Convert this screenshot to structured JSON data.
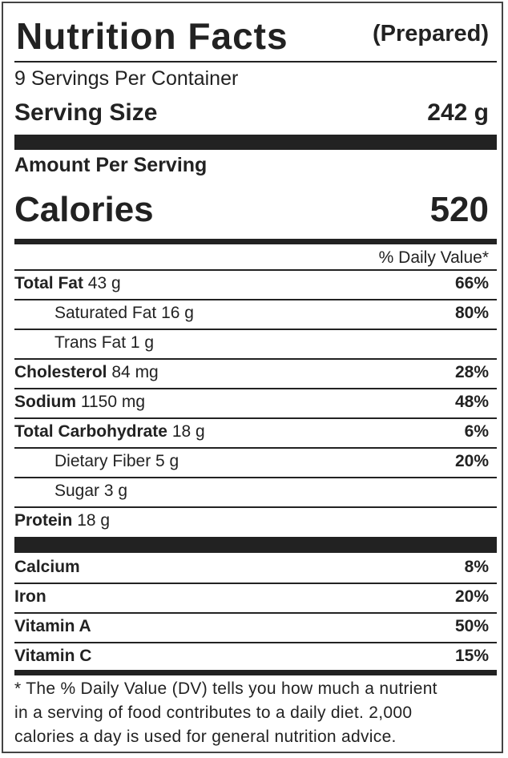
{
  "header": {
    "title": "Nutrition Facts",
    "qualifier": "(Prepared)"
  },
  "servings": "9 Servings Per Container",
  "serving_size": {
    "label": "Serving Size",
    "value": "242 g"
  },
  "amount_per_serving": "Amount Per Serving",
  "calories": {
    "label": "Calories",
    "value": "520"
  },
  "daily_value_header": "% Daily Value*",
  "nutrients": [
    {
      "name": "Total Fat",
      "amount": "43 g",
      "dv": "66%",
      "indent": false
    },
    {
      "name": "Saturated Fat",
      "amount": "16 g",
      "dv": "80%",
      "indent": true
    },
    {
      "name": "Trans Fat",
      "amount": "1 g",
      "indent": true
    },
    {
      "name": "Cholesterol",
      "amount": "84 mg",
      "dv": "28%",
      "indent": false
    },
    {
      "name": "Sodium",
      "amount": "1150 mg",
      "dv": "48%",
      "indent": false
    },
    {
      "name": "Total Carbohydrate",
      "amount": "18 g",
      "dv": "6%",
      "indent": false
    },
    {
      "name": "Dietary Fiber",
      "amount": "5 g",
      "dv": "20%",
      "indent": true
    },
    {
      "name": "Sugar",
      "amount": "3 g",
      "indent": true
    },
    {
      "name": "Protein",
      "amount": "18 g",
      "indent": false
    }
  ],
  "vitamins": [
    {
      "name": "Calcium",
      "dv": "8%"
    },
    {
      "name": "Iron",
      "dv": "20%"
    },
    {
      "name": "Vitamin A",
      "dv": "50%"
    },
    {
      "name": "Vitamin C",
      "dv": "15%"
    }
  ],
  "footnote": [
    "* The % Daily Value (DV) tells you how much a nutrient",
    "in a serving of food contributes to a daily diet. 2,000",
    "calories a day is used for general nutrition advice."
  ]
}
